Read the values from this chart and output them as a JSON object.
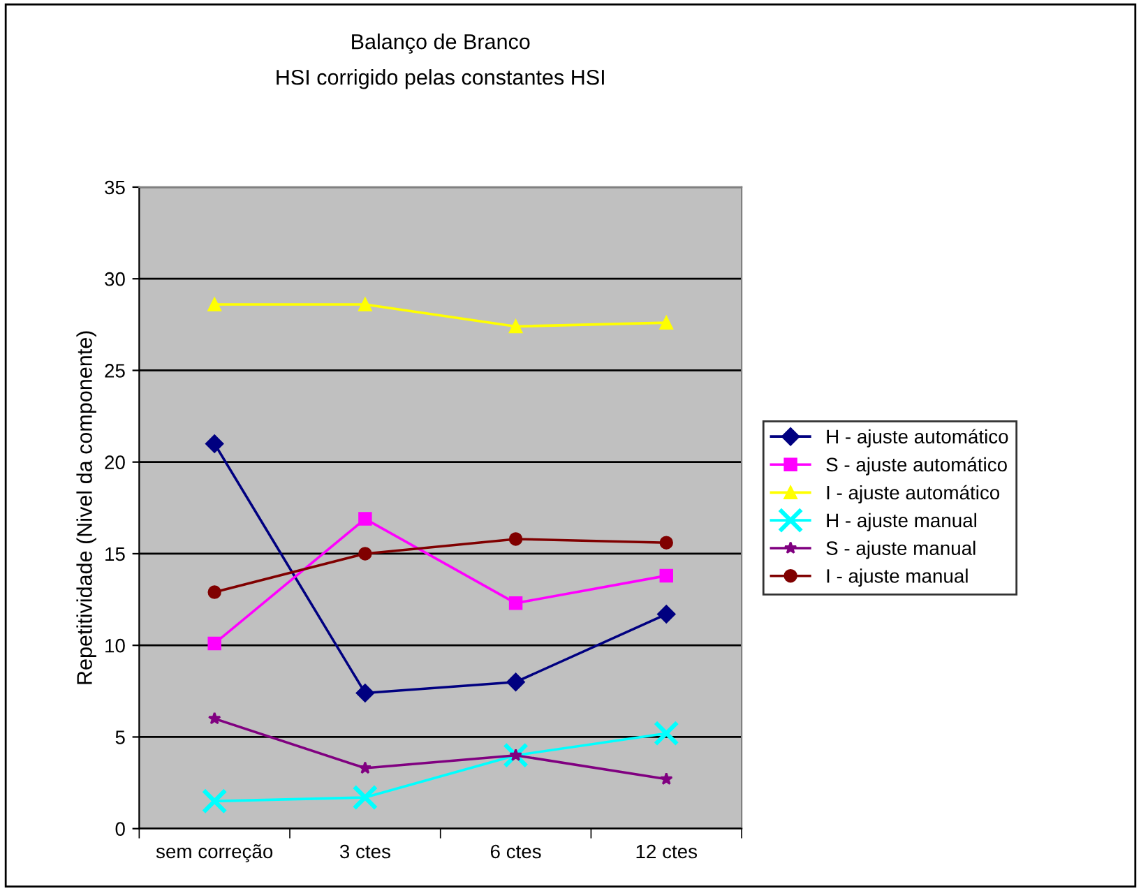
{
  "chart_data": {
    "type": "line",
    "title": "Balanço de Branco",
    "subtitle": "HSI corrigido pelas constantes HSI",
    "ylabel": "Repetitividade (Nivel da componente)",
    "categories": [
      "sem correção",
      "3 ctes",
      "6 ctes",
      "12 ctes"
    ],
    "series": [
      {
        "name": "H - ajuste automático",
        "color": "#000080",
        "marker": "diamond",
        "values": [
          21,
          7.4,
          8,
          11.7
        ]
      },
      {
        "name": "S - ajuste automático",
        "color": "#ff00ff",
        "marker": "square",
        "values": [
          10.1,
          16.9,
          12.3,
          13.8
        ]
      },
      {
        "name": "I - ajuste automático",
        "color": "#ffff00",
        "marker": "triangle",
        "values": [
          28.6,
          28.6,
          27.4,
          27.6
        ]
      },
      {
        "name": "H - ajuste manual",
        "color": "#00ffff",
        "marker": "cross",
        "values": [
          1.5,
          1.7,
          4,
          5.2
        ]
      },
      {
        "name": "S - ajuste manual",
        "color": "#800080",
        "marker": "star",
        "values": [
          6,
          3.3,
          4,
          2.7
        ]
      },
      {
        "name": "I - ajuste manual",
        "color": "#800000",
        "marker": "circle",
        "values": [
          12.9,
          15,
          15.8,
          15.6
        ]
      }
    ],
    "ylim": [
      0,
      35
    ],
    "yticks": [
      0,
      5,
      10,
      15,
      20,
      25,
      30,
      35
    ],
    "grid": "y",
    "legend": "right",
    "line_style": "solid"
  }
}
